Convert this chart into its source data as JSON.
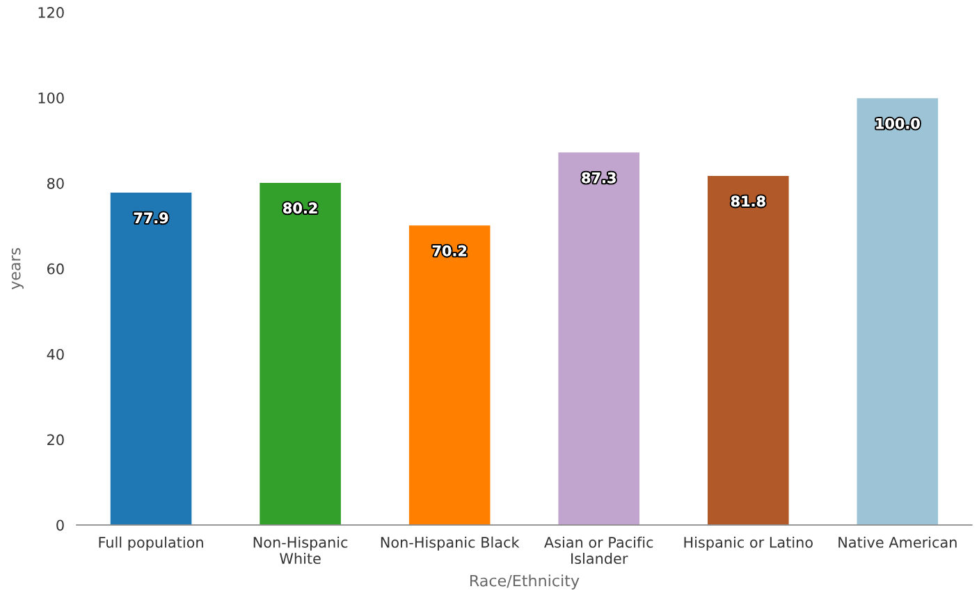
{
  "chart_data": {
    "type": "bar",
    "xlabel": "Race/Ethnicity",
    "ylabel": "years",
    "categories": [
      "Full population",
      "Non-Hispanic\nWhite",
      "Non-Hispanic Black",
      "Asian or Pacific\nIslander",
      "Hispanic or Latino",
      "Native American"
    ],
    "values": [
      77.9,
      80.2,
      70.2,
      87.3,
      81.8,
      100.0
    ],
    "colors": [
      "#1f77b4",
      "#33a02c",
      "#ff7f00",
      "#c2a5cf",
      "#b15928",
      "#9cc3d6"
    ],
    "value_labels": [
      "77.9",
      "80.2",
      "70.2",
      "87.3",
      "81.8",
      "100.0"
    ],
    "ylim": [
      0,
      120
    ],
    "yticks": [
      0,
      20,
      40,
      60,
      80,
      100,
      120
    ],
    "grid": false,
    "legend": false
  }
}
